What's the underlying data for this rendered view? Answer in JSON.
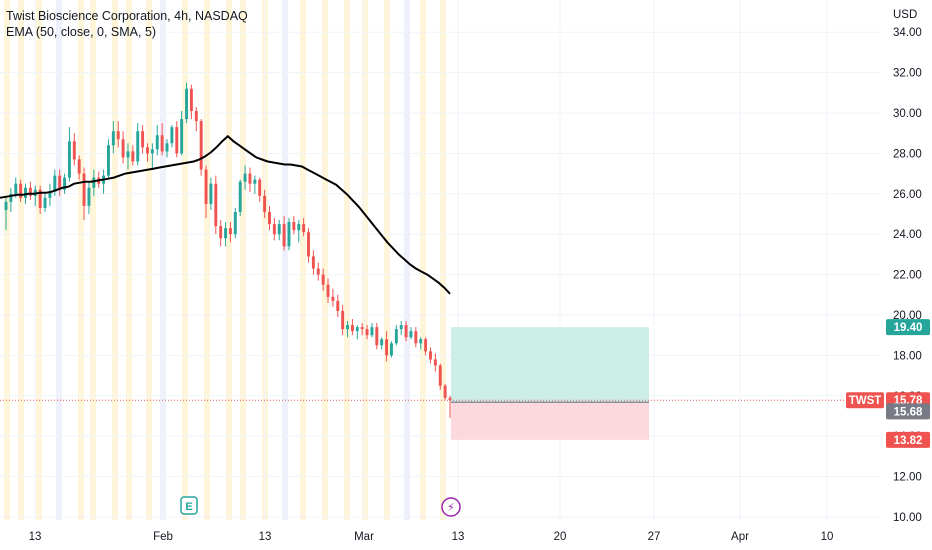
{
  "legend": {
    "title": "Twist Bioscience Corporation, 4h, NASDAQ",
    "indicator": "EMA (50, close, 0, SMA, 5)"
  },
  "price_axis": {
    "unit": "USD"
  },
  "colors": {
    "up": "#26a69a",
    "down": "#ef5350",
    "ema": "#000000",
    "profit_zone": "#cdeee6",
    "loss_zone": "#fbd9dc",
    "grid": "#f0f3fa",
    "session_highlight": "#fff6da",
    "session_highlight_alt": "#eef0fb",
    "last_price_line": "#ef5350",
    "badge_target": "#26a69a",
    "badge_entry": "#787b86",
    "badge_stop": "#ef5350",
    "event_earnings": "#26a69a",
    "event_dividend": "#9c27b0"
  },
  "chart_data": {
    "type": "candlestick",
    "title": "Twist Bioscience Corporation, 4h, NASDAQ",
    "ylim": [
      9.9,
      34.6
    ],
    "y_ticks": [
      "10.00",
      "12.00",
      "14.00",
      "16.00",
      "18.00",
      "20.00",
      "22.00",
      "24.00",
      "26.00",
      "28.00",
      "30.00",
      "32.00",
      "34.00"
    ],
    "x_ticks": [
      "13",
      "Feb",
      "13",
      "Mar",
      "13",
      "20",
      "27",
      "Apr",
      "10"
    ],
    "grid": true,
    "candles": [
      [
        25.2,
        25.9,
        24.2,
        25.6
      ],
      [
        25.6,
        26.3,
        25.1,
        26.0
      ],
      [
        26.0,
        26.8,
        25.8,
        26.5
      ],
      [
        26.5,
        26.7,
        25.6,
        25.8
      ],
      [
        25.8,
        26.5,
        25.5,
        26.3
      ],
      [
        26.3,
        26.6,
        25.7,
        25.9
      ],
      [
        25.9,
        26.4,
        25.4,
        26.2
      ],
      [
        26.2,
        26.4,
        25.0,
        25.3
      ],
      [
        25.3,
        26.0,
        25.1,
        25.8
      ],
      [
        25.8,
        26.5,
        25.4,
        26.1
      ],
      [
        26.1,
        27.2,
        25.9,
        26.9
      ],
      [
        26.9,
        27.2,
        25.9,
        26.2
      ],
      [
        26.2,
        27.0,
        26.0,
        26.8
      ],
      [
        26.8,
        29.3,
        26.6,
        28.6
      ],
      [
        28.6,
        29.0,
        27.4,
        27.7
      ],
      [
        27.7,
        27.9,
        26.7,
        27.0
      ],
      [
        27.0,
        27.3,
        24.7,
        25.4
      ],
      [
        25.4,
        26.6,
        25.0,
        26.3
      ],
      [
        26.3,
        27.2,
        25.9,
        26.8
      ],
      [
        26.8,
        27.1,
        26.3,
        26.5
      ],
      [
        26.5,
        27.2,
        26.0,
        26.9
      ],
      [
        26.9,
        28.7,
        26.7,
        28.4
      ],
      [
        28.4,
        29.6,
        28.0,
        29.1
      ],
      [
        29.1,
        29.6,
        28.3,
        28.7
      ],
      [
        28.7,
        29.1,
        27.5,
        27.8
      ],
      [
        27.8,
        28.5,
        27.2,
        28.1
      ],
      [
        28.1,
        28.4,
        27.4,
        27.6
      ],
      [
        27.6,
        29.5,
        27.4,
        29.1
      ],
      [
        29.1,
        29.4,
        28.0,
        28.3
      ],
      [
        28.3,
        28.5,
        27.6,
        28.0
      ],
      [
        28.0,
        28.5,
        27.3,
        28.2
      ],
      [
        28.2,
        29.4,
        27.9,
        28.9
      ],
      [
        28.9,
        29.5,
        27.9,
        28.1
      ],
      [
        28.1,
        28.7,
        27.8,
        28.5
      ],
      [
        28.5,
        29.4,
        28.3,
        29.3
      ],
      [
        29.3,
        29.6,
        27.8,
        28.0
      ],
      [
        28.0,
        30.1,
        27.9,
        29.7
      ],
      [
        29.7,
        31.5,
        29.5,
        31.2
      ],
      [
        31.2,
        31.4,
        29.7,
        30.1
      ],
      [
        30.1,
        30.3,
        29.1,
        29.6
      ],
      [
        29.6,
        29.7,
        26.9,
        27.2
      ],
      [
        27.2,
        27.4,
        24.8,
        25.5
      ],
      [
        25.5,
        26.8,
        25.2,
        26.5
      ],
      [
        26.5,
        26.9,
        24.0,
        24.4
      ],
      [
        24.4,
        24.7,
        23.4,
        23.8
      ],
      [
        23.8,
        24.6,
        23.4,
        24.3
      ],
      [
        24.3,
        24.6,
        23.6,
        24.0
      ],
      [
        24.0,
        25.3,
        23.8,
        25.1
      ],
      [
        25.1,
        26.7,
        24.9,
        26.6
      ],
      [
        26.6,
        27.4,
        26.2,
        27.0
      ],
      [
        27.0,
        27.3,
        26.1,
        26.5
      ],
      [
        26.5,
        26.9,
        26.0,
        26.7
      ],
      [
        26.7,
        26.8,
        25.6,
        25.9
      ],
      [
        25.9,
        26.2,
        24.8,
        25.1
      ],
      [
        25.1,
        25.4,
        24.2,
        24.5
      ],
      [
        24.5,
        24.8,
        23.7,
        24.0
      ],
      [
        24.0,
        24.7,
        23.7,
        24.5
      ],
      [
        24.5,
        24.9,
        23.2,
        23.4
      ],
      [
        23.4,
        24.8,
        23.2,
        24.6
      ],
      [
        24.6,
        24.9,
        24.0,
        24.2
      ],
      [
        24.2,
        24.7,
        23.6,
        24.5
      ],
      [
        24.5,
        24.8,
        23.9,
        24.1
      ],
      [
        24.1,
        24.3,
        22.6,
        22.9
      ],
      [
        22.9,
        23.2,
        22.0,
        22.3
      ],
      [
        22.3,
        22.6,
        21.7,
        22.0
      ],
      [
        22.0,
        22.3,
        21.2,
        21.5
      ],
      [
        21.5,
        21.8,
        20.6,
        20.9
      ],
      [
        20.9,
        21.3,
        20.4,
        20.7
      ],
      [
        20.7,
        21.0,
        19.9,
        20.2
      ],
      [
        20.2,
        20.5,
        19.0,
        19.3
      ],
      [
        19.3,
        19.7,
        18.9,
        19.5
      ],
      [
        19.5,
        19.8,
        19.0,
        19.2
      ],
      [
        19.2,
        19.5,
        18.8,
        19.4
      ],
      [
        19.4,
        19.6,
        19.0,
        19.3
      ],
      [
        19.3,
        19.5,
        18.8,
        19.0
      ],
      [
        19.0,
        19.6,
        18.9,
        19.4
      ],
      [
        19.4,
        19.6,
        18.3,
        18.5
      ],
      [
        18.5,
        18.9,
        18.3,
        18.8
      ],
      [
        18.8,
        19.2,
        17.7,
        18.0
      ],
      [
        18.0,
        18.7,
        17.9,
        18.6
      ],
      [
        18.6,
        19.5,
        18.5,
        19.3
      ],
      [
        19.3,
        19.7,
        19.0,
        19.5
      ],
      [
        19.5,
        19.7,
        18.7,
        18.9
      ],
      [
        18.9,
        19.4,
        18.8,
        19.2
      ],
      [
        19.2,
        19.4,
        18.4,
        18.6
      ],
      [
        18.6,
        18.9,
        18.3,
        18.8
      ],
      [
        18.8,
        18.9,
        18.0,
        18.2
      ],
      [
        18.2,
        18.4,
        17.6,
        17.8
      ],
      [
        17.8,
        18.1,
        17.2,
        17.5
      ],
      [
        17.5,
        17.6,
        16.3,
        16.5
      ],
      [
        16.5,
        16.6,
        15.8,
        15.9
      ],
      [
        15.9,
        16.0,
        14.9,
        15.8
      ]
    ],
    "ema": [
      25.8,
      25.85,
      25.9,
      25.95,
      25.95,
      26.0,
      26.0,
      26.05,
      26.05,
      26.1,
      26.2,
      26.3,
      26.35,
      26.5,
      26.55,
      26.6,
      26.6,
      26.65,
      26.7,
      26.75,
      26.8,
      26.9,
      27.0,
      27.05,
      27.1,
      27.15,
      27.2,
      27.25,
      27.3,
      27.35,
      27.4,
      27.45,
      27.5,
      27.55,
      27.6,
      27.7,
      27.85,
      28.05,
      28.3,
      28.6,
      28.85,
      28.6,
      28.4,
      28.2,
      28.0,
      27.8,
      27.7,
      27.6,
      27.55,
      27.5,
      27.45,
      27.45,
      27.4,
      27.35,
      27.2,
      27.05,
      26.9,
      26.75,
      26.6,
      26.45,
      26.2,
      25.95,
      25.65,
      25.35,
      25.0,
      24.65,
      24.3,
      23.95,
      23.6,
      23.3,
      23.0,
      22.75,
      22.5,
      22.3,
      22.15,
      22.0,
      21.8,
      21.6,
      21.35,
      21.05
    ],
    "position": {
      "target": "19.40",
      "entry": "15.68",
      "stop": "13.82",
      "target_value": 19.4,
      "entry_value": 15.68,
      "stop_value": 13.82
    },
    "last_price": {
      "symbol": "TWST",
      "value": "15.78",
      "price": 15.78
    },
    "events": [
      {
        "kind": "earnings",
        "glyph": "E"
      },
      {
        "kind": "dividend",
        "glyph": "⚡"
      }
    ]
  }
}
